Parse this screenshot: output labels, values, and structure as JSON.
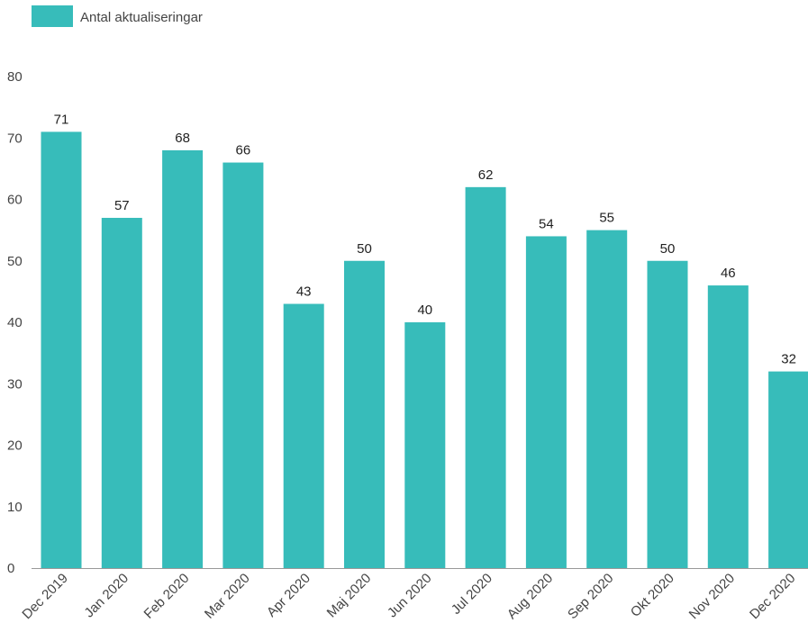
{
  "chart_data": {
    "type": "bar",
    "categories": [
      "Dec 2019",
      "Jan 2020",
      "Feb 2020",
      "Mar 2020",
      "Apr 2020",
      "Maj 2020",
      "Jun 2020",
      "Jul 2020",
      "Aug 2020",
      "Sep 2020",
      "Okt 2020",
      "Nov 2020",
      "Dec 2020"
    ],
    "series": [
      {
        "name": "Antal aktualiseringar",
        "values": [
          71,
          57,
          68,
          66,
          43,
          50,
          40,
          62,
          54,
          55,
          50,
          46,
          32
        ],
        "color": "#37bcba"
      }
    ],
    "title": "",
    "xlabel": "",
    "ylabel": "",
    "ylim": [
      0,
      80
    ],
    "yticks": [
      0,
      10,
      20,
      30,
      40,
      50,
      60,
      70,
      80
    ],
    "grid": false,
    "legend": "top-left",
    "data_labels": true
  },
  "legend": {
    "label": "Antal aktualiseringar"
  }
}
